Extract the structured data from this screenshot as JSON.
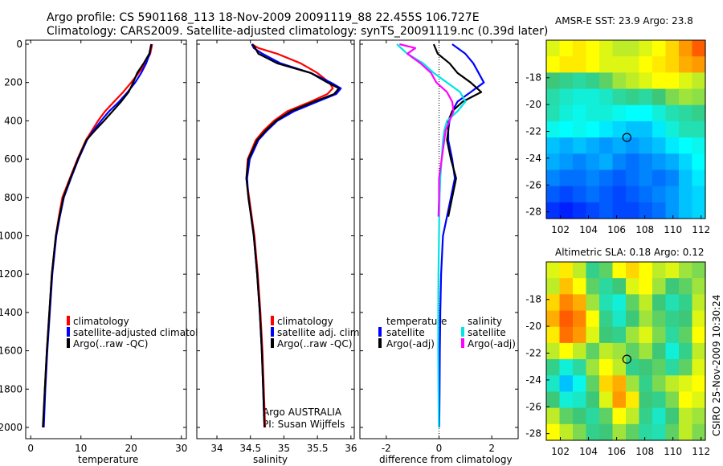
{
  "title_line1": "Argo profile: CS 5901168_113 18-Nov-2009 20091119_88 22.455S 106.727E",
  "title_line2": "Climatology: CARS2009. Satellite-adjusted climatology: synTS_20091119.nc (0.39d later)",
  "timestamp": "CSIRO 25-Nov-2009 10:30:24",
  "colors": {
    "climatology": "#ff0000",
    "satellite": "#0000ff",
    "argo": "#000000",
    "salinity_sat": "#00e5e5",
    "salinity_argo": "#ff00ff"
  },
  "chart_data": [
    {
      "type": "line",
      "xlabel": "temperature",
      "ylabel": "",
      "xlim": [
        -1,
        31
      ],
      "ylim": [
        2000,
        0
      ],
      "xticks": [
        0,
        10,
        20,
        30
      ],
      "yticks": [
        0,
        200,
        400,
        600,
        800,
        1000,
        1200,
        1400,
        1600,
        1800,
        2000
      ],
      "legend": [
        "climatology",
        "satellite-adjusted climatology",
        "Argo(..raw -QC)"
      ],
      "series": [
        {
          "name": "climatology",
          "color": "#ff0000",
          "y": [
            0,
            50,
            100,
            150,
            200,
            250,
            300,
            350,
            400,
            450,
            500,
            600,
            700,
            800,
            900,
            1000,
            1200,
            1400,
            1600,
            1800,
            2000
          ],
          "x": [
            24.2,
            23.8,
            22.8,
            21.5,
            20.0,
            18.4,
            16.6,
            14.8,
            13.4,
            12.2,
            11.0,
            9.3,
            7.8,
            6.3,
            5.6,
            5.0,
            4.2,
            3.7,
            3.2,
            2.8,
            2.5
          ]
        },
        {
          "name": "satellite-adjusted climatology",
          "color": "#0000ff",
          "y": [
            0,
            50,
            100,
            150,
            200,
            250,
            300,
            350,
            400,
            450,
            500,
            600,
            700,
            800,
            900,
            1000,
            1200,
            1400,
            1600,
            1800,
            2000
          ],
          "x": [
            24.0,
            23.7,
            23.0,
            22.0,
            20.8,
            19.3,
            17.6,
            15.6,
            14.0,
            12.5,
            11.2,
            9.5,
            8.0,
            6.6,
            5.8,
            5.1,
            4.3,
            3.8,
            3.3,
            2.9,
            2.6
          ]
        },
        {
          "name": "Argo(..raw -QC)",
          "color": "#000000",
          "y": [
            0,
            50,
            100,
            150,
            200,
            250,
            300,
            350,
            400,
            450,
            500,
            600,
            700,
            800,
            900,
            1000,
            1200,
            1400,
            1600,
            1800,
            2000
          ],
          "x": [
            24.0,
            23.6,
            22.5,
            21.2,
            20.4,
            19.5,
            18.0,
            16.3,
            14.6,
            12.8,
            11.1,
            9.4,
            7.9,
            6.5,
            5.7,
            5.0,
            4.2,
            3.7,
            3.2,
            2.8,
            2.4
          ]
        }
      ]
    },
    {
      "type": "line",
      "xlabel": "salinity",
      "ylabel": "",
      "xlim": [
        33.7,
        36.05
      ],
      "ylim": [
        2000,
        0
      ],
      "xticks": [
        34,
        34.5,
        35,
        35.5,
        36
      ],
      "xticklabels": [
        "34",
        "34.5",
        "35",
        "35.5",
        "36"
      ],
      "legend": [
        "climatology",
        "satellite adj. clim.",
        "Argo(..raw -QC)"
      ],
      "annotation": [
        "Argo AUSTRALIA",
        "PI: Susan Wijffels"
      ],
      "series": [
        {
          "name": "climatology",
          "color": "#ff0000",
          "y": [
            0,
            20,
            50,
            100,
            150,
            200,
            230,
            260,
            300,
            350,
            400,
            450,
            500,
            600,
            700,
            800,
            900,
            1000,
            1200,
            1400,
            1600,
            1800,
            2000
          ],
          "x": [
            34.52,
            34.62,
            34.9,
            35.25,
            35.5,
            35.68,
            35.73,
            35.65,
            35.4,
            35.05,
            34.85,
            34.7,
            34.58,
            34.46,
            34.44,
            34.48,
            34.52,
            34.56,
            34.61,
            34.65,
            34.68,
            34.7,
            34.72
          ]
        },
        {
          "name": "satellite adj. clim.",
          "color": "#0000ff",
          "y": [
            0,
            20,
            50,
            100,
            150,
            200,
            230,
            260,
            300,
            350,
            400,
            450,
            500,
            600,
            700,
            800,
            900,
            1000,
            1200,
            1400,
            1600,
            1800,
            2000
          ],
          "x": [
            34.52,
            34.55,
            34.68,
            34.95,
            35.4,
            35.7,
            35.85,
            35.78,
            35.5,
            35.15,
            34.9,
            34.75,
            34.62,
            34.49,
            34.45,
            34.47,
            34.51,
            34.55,
            34.6,
            34.64,
            34.67,
            34.69,
            34.71
          ]
        },
        {
          "name": "Argo(..raw -QC)",
          "color": "#000000",
          "y": [
            0,
            20,
            50,
            100,
            150,
            200,
            230,
            260,
            300,
            350,
            400,
            450,
            500,
            600,
            700,
            800,
            900,
            1000,
            1200,
            1400,
            1600,
            1800,
            2000
          ],
          "x": [
            34.53,
            34.57,
            34.62,
            34.9,
            35.4,
            35.65,
            35.82,
            35.75,
            35.45,
            35.1,
            34.88,
            34.73,
            34.6,
            34.47,
            34.44,
            34.47,
            34.51,
            34.55,
            34.6,
            34.64,
            34.67,
            34.69,
            34.71
          ]
        }
      ]
    },
    {
      "type": "line",
      "xlabel": "difference from climatology",
      "ylabel": "",
      "xlim": [
        -3.0,
        3.0
      ],
      "ylim": [
        2000,
        0
      ],
      "xticks": [
        -2,
        0,
        2
      ],
      "legend_titles": [
        "temperature",
        "salinity"
      ],
      "legend": [
        "satellite",
        "Argo(-adj)",
        "satellite",
        "Argo(-adj)"
      ],
      "series": [
        {
          "name": "satellite",
          "quantity": "temperature",
          "color": "#0000ff",
          "y": [
            0,
            50,
            100,
            150,
            200,
            250,
            300,
            350,
            400,
            450,
            500,
            600,
            700,
            800,
            900,
            1000,
            1200,
            1400,
            1600,
            1800,
            2000
          ],
          "x": [
            0.5,
            1.0,
            1.3,
            1.5,
            1.7,
            1.2,
            0.7,
            0.5,
            0.4,
            0.35,
            0.35,
            0.5,
            0.6,
            0.45,
            0.3,
            0.15,
            0.08,
            0.05,
            0.03,
            0.02,
            0.01
          ]
        },
        {
          "name": "Argo(-adj)",
          "quantity": "temperature",
          "color": "#000000",
          "y": [
            0,
            50,
            100,
            150,
            200,
            250,
            300,
            350,
            400,
            450,
            500,
            600,
            700,
            800,
            900
          ],
          "x": [
            -0.2,
            -0.05,
            0.4,
            0.7,
            1.2,
            1.6,
            0.9,
            0.5,
            0.35,
            0.35,
            0.3,
            0.45,
            0.65,
            0.5,
            0.35
          ]
        },
        {
          "name": "satellite",
          "quantity": "salinity",
          "color": "#00e5e5",
          "y": [
            0,
            50,
            100,
            150,
            200,
            250,
            300,
            350,
            400,
            450,
            500,
            600,
            700,
            800,
            900,
            1000,
            1200,
            1400,
            1600,
            1800,
            2000
          ],
          "x": [
            -1.6,
            -1.2,
            -0.6,
            -0.2,
            0.3,
            0.8,
            1.0,
            0.7,
            0.3,
            0.2,
            0.15,
            0.1,
            0.05,
            0.02,
            0.01,
            0.0,
            -0.02,
            -0.03,
            -0.03,
            -0.02,
            -0.01
          ]
        },
        {
          "name": "Argo(-adj)",
          "quantity": "salinity",
          "color": "#ff00ff",
          "y": [
            0,
            20,
            50,
            100,
            150,
            200,
            250,
            300,
            350,
            400,
            450,
            500,
            600,
            700,
            800,
            900
          ],
          "x": [
            -1.5,
            -0.9,
            -1.2,
            -0.7,
            -0.3,
            -0.1,
            0.3,
            0.5,
            0.55,
            0.4,
            0.25,
            0.2,
            0.1,
            0.0,
            0.0,
            -0.02
          ]
        }
      ]
    },
    {
      "type": "heatmap",
      "title": "AMSR-E SST: 23.9 Argo: 23.8",
      "xlim": [
        101,
        112.3
      ],
      "ylim": [
        -28.5,
        -15.2
      ],
      "xticks": [
        102,
        104,
        106,
        108,
        110,
        112
      ],
      "yticks": [
        -18,
        -20,
        -22,
        -24,
        -26,
        -28
      ],
      "marker": {
        "x": 106.727,
        "y": -22.455
      },
      "colormap": "jet",
      "field": [
        [
          0.6,
          0.62,
          0.64,
          0.62,
          0.6,
          0.58,
          0.58,
          0.6,
          0.62,
          0.66,
          0.72,
          0.78
        ],
        [
          0.62,
          0.64,
          0.64,
          0.62,
          0.6,
          0.6,
          0.6,
          0.62,
          0.64,
          0.66,
          0.7,
          0.72
        ],
        [
          0.5,
          0.48,
          0.46,
          0.48,
          0.52,
          0.56,
          0.58,
          0.6,
          0.62,
          0.62,
          0.6,
          0.58
        ],
        [
          0.45,
          0.42,
          0.4,
          0.4,
          0.42,
          0.46,
          0.48,
          0.46,
          0.5,
          0.54,
          0.56,
          0.55
        ],
        [
          0.44,
          0.4,
          0.38,
          0.4,
          0.4,
          0.38,
          0.36,
          0.36,
          0.4,
          0.44,
          0.46,
          0.48
        ],
        [
          0.38,
          0.36,
          0.38,
          0.36,
          0.34,
          0.32,
          0.3,
          0.3,
          0.34,
          0.4,
          0.44,
          0.44
        ],
        [
          0.3,
          0.28,
          0.3,
          0.28,
          0.26,
          0.28,
          0.26,
          0.28,
          0.3,
          0.34,
          0.36,
          0.38
        ],
        [
          0.28,
          0.26,
          0.24,
          0.26,
          0.28,
          0.24,
          0.22,
          0.24,
          0.26,
          0.28,
          0.32,
          0.36
        ],
        [
          0.24,
          0.22,
          0.22,
          0.24,
          0.22,
          0.2,
          0.22,
          0.24,
          0.22,
          0.24,
          0.3,
          0.34
        ],
        [
          0.2,
          0.18,
          0.2,
          0.22,
          0.2,
          0.18,
          0.2,
          0.22,
          0.24,
          0.26,
          0.3,
          0.32
        ],
        [
          0.16,
          0.14,
          0.16,
          0.18,
          0.2,
          0.18,
          0.18,
          0.2,
          0.22,
          0.26,
          0.3,
          0.32
        ]
      ]
    },
    {
      "type": "heatmap",
      "title": "Altimetric SLA: 0.18 Argo: 0.12",
      "xlim": [
        101,
        112.3
      ],
      "ylim": [
        -28.5,
        -15.2
      ],
      "xticks": [
        102,
        104,
        106,
        108,
        110,
        112
      ],
      "yticks": [
        -18,
        -20,
        -22,
        -24,
        -26,
        -28
      ],
      "marker": {
        "x": 106.727,
        "y": -22.455
      },
      "colormap": "jet",
      "field": [
        [
          0.6,
          0.64,
          0.58,
          0.48,
          0.52,
          0.62,
          0.66,
          0.62,
          0.58,
          0.6,
          0.56,
          0.54
        ],
        [
          0.58,
          0.68,
          0.62,
          0.52,
          0.46,
          0.5,
          0.6,
          0.62,
          0.56,
          0.5,
          0.52,
          0.56
        ],
        [
          0.66,
          0.74,
          0.7,
          0.56,
          0.44,
          0.4,
          0.52,
          0.58,
          0.5,
          0.44,
          0.48,
          0.58
        ],
        [
          0.7,
          0.78,
          0.74,
          0.62,
          0.48,
          0.42,
          0.5,
          0.56,
          0.52,
          0.48,
          0.5,
          0.6
        ],
        [
          0.64,
          0.76,
          0.72,
          0.6,
          0.5,
          0.48,
          0.56,
          0.6,
          0.54,
          0.46,
          0.52,
          0.62
        ],
        [
          0.58,
          0.62,
          0.58,
          0.52,
          0.58,
          0.56,
          0.52,
          0.56,
          0.5,
          0.4,
          0.48,
          0.58
        ],
        [
          0.48,
          0.4,
          0.46,
          0.56,
          0.62,
          0.58,
          0.48,
          0.5,
          0.52,
          0.46,
          0.52,
          0.6
        ],
        [
          0.42,
          0.3,
          0.38,
          0.52,
          0.66,
          0.7,
          0.56,
          0.48,
          0.54,
          0.58,
          0.6,
          0.62
        ],
        [
          0.5,
          0.4,
          0.42,
          0.5,
          0.6,
          0.72,
          0.64,
          0.5,
          0.48,
          0.54,
          0.62,
          0.6
        ],
        [
          0.58,
          0.52,
          0.5,
          0.46,
          0.52,
          0.62,
          0.58,
          0.48,
          0.42,
          0.5,
          0.58,
          0.56
        ],
        [
          0.62,
          0.58,
          0.54,
          0.48,
          0.5,
          0.56,
          0.52,
          0.46,
          0.44,
          0.52,
          0.58,
          0.54
        ]
      ]
    }
  ]
}
